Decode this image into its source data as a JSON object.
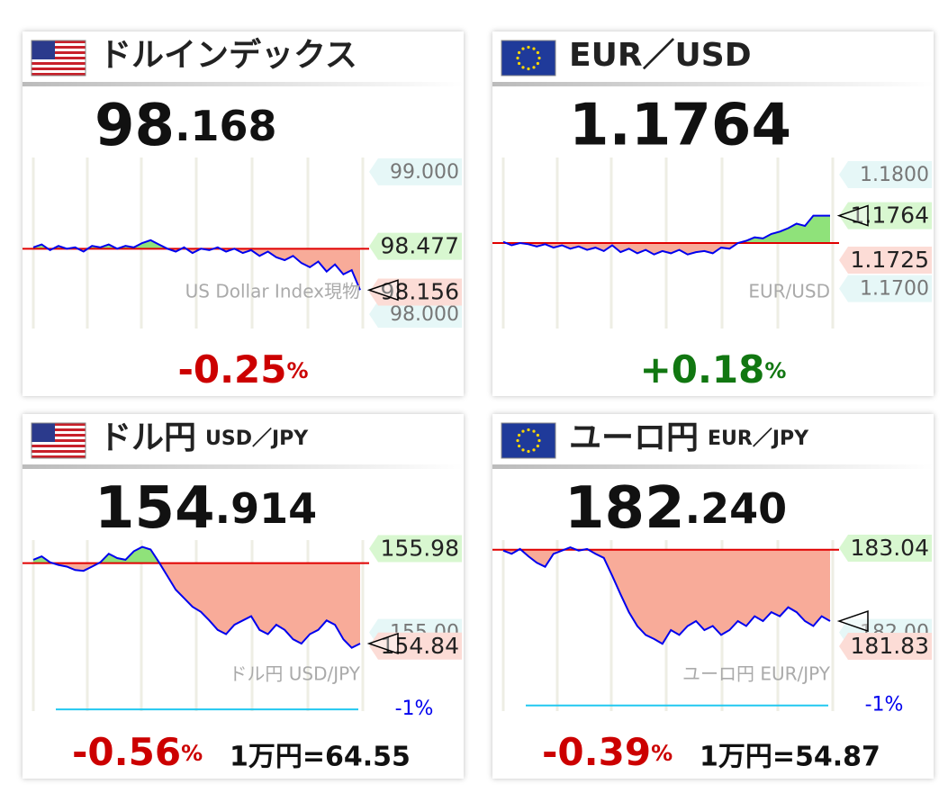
{
  "chart_data": [
    {
      "type": "line",
      "title": "ドルインデックス",
      "price": "98.168",
      "change": "-0.25%",
      "change_color": "#cc0000",
      "watermark": "US Dollar Index現物",
      "color": "#0000ee",
      "values": [
        98.47,
        98.49,
        98.45,
        98.48,
        98.46,
        98.47,
        98.44,
        98.48,
        98.47,
        98.49,
        98.46,
        98.48,
        98.47,
        98.5,
        98.52,
        98.49,
        98.46,
        98.44,
        98.47,
        98.43,
        98.46,
        98.45,
        98.47,
        98.44,
        98.46,
        98.43,
        98.45,
        98.41,
        98.44,
        98.4,
        98.38,
        98.41,
        98.36,
        98.33,
        98.37,
        98.3,
        98.35,
        98.28,
        98.31,
        98.17
      ],
      "ref_line": 98.46,
      "ylim": [
        97.9,
        99.1
      ],
      "yticks": [
        {
          "value": 99,
          "label": "99.000"
        },
        {
          "value": 98,
          "label": "98.000"
        }
      ],
      "price_labels": [
        {
          "value": 98.477,
          "label": "98.477",
          "color": "#d8f7d0"
        },
        {
          "value": 98.156,
          "label": "98.156",
          "color": "#fcdcd6"
        }
      ]
    },
    {
      "type": "line",
      "title": "EUR／USD",
      "price": "1.1764",
      "change": "+0.18%",
      "change_color": "#117711",
      "watermark": "EUR/USD",
      "color": "#0000ee",
      "values": [
        1.1741,
        1.1738,
        1.174,
        1.1739,
        1.1737,
        1.1739,
        1.1736,
        1.1738,
        1.1735,
        1.1737,
        1.1734,
        1.1736,
        1.1733,
        1.1738,
        1.1732,
        1.1735,
        1.1731,
        1.1734,
        1.173,
        1.1733,
        1.1731,
        1.1734,
        1.173,
        1.1732,
        1.1733,
        1.1731,
        1.1736,
        1.1735,
        1.174,
        1.1742,
        1.1745,
        1.1744,
        1.1748,
        1.175,
        1.1753,
        1.1757,
        1.1755,
        1.1764,
        1.1764,
        1.1764
      ],
      "ref_line": 1.174,
      "ylim": [
        1.1665,
        1.1815
      ],
      "yticks": [
        {
          "value": 1.18,
          "label": "1.1800"
        },
        {
          "value": 1.17,
          "label": "1.1700"
        }
      ],
      "price_labels": [
        {
          "value": 1.1764,
          "label": "1.1764",
          "color": "#d8f7d0"
        },
        {
          "value": 1.1725,
          "label": "1.1725",
          "color": "#fcdcd6"
        }
      ]
    },
    {
      "type": "line",
      "title": "ドル円",
      "subtitle": "USD／JPY",
      "price": "154.914",
      "change": "-0.56%",
      "change_color": "#cc0000",
      "note": "1万円=64.55",
      "watermark": "ドル円 USD/JPY",
      "color": "#0000ee",
      "values": [
        155.85,
        155.89,
        155.82,
        155.79,
        155.77,
        155.73,
        155.72,
        155.77,
        155.82,
        155.92,
        155.87,
        155.85,
        155.95,
        156.0,
        155.97,
        155.82,
        155.66,
        155.5,
        155.4,
        155.3,
        155.24,
        155.14,
        155.03,
        154.98,
        155.09,
        155.14,
        155.19,
        155.03,
        154.98,
        155.09,
        155.03,
        154.92,
        154.87,
        154.98,
        155.03,
        155.14,
        155.09,
        154.92,
        154.82,
        154.87
      ],
      "ref_line": 155.81,
      "ylim": [
        154.08,
        156.08
      ],
      "yticks": [
        {
          "value": 155,
          "label": "155.00"
        }
      ],
      "price_labels": [
        {
          "value": 155.98,
          "label": "155.98",
          "color": "#d8f7d0"
        },
        {
          "value": 154.84,
          "label": "154.84",
          "color": "#fcdcd6"
        }
      ],
      "minus_line": {
        "value": 154.1,
        "label": "-1%"
      }
    },
    {
      "type": "line",
      "title": "ユーロ円",
      "subtitle": "EUR／JPY",
      "price": "182.240",
      "change": "-0.39%",
      "change_color": "#cc0000",
      "note": "1万円=54.87",
      "watermark": "ユーロ円 EUR/JPY",
      "color": "#0000ee",
      "values": [
        183.01,
        182.97,
        183.03,
        182.94,
        182.86,
        182.81,
        182.97,
        183.01,
        183.05,
        183.01,
        183.03,
        182.97,
        182.92,
        182.7,
        182.47,
        182.25,
        182.08,
        181.97,
        181.92,
        181.86,
        182.03,
        181.97,
        182.08,
        182.14,
        182.03,
        182.08,
        181.97,
        182.03,
        182.14,
        182.08,
        182.2,
        182.14,
        182.25,
        182.2,
        182.31,
        182.25,
        182.14,
        182.08,
        182.2,
        182.14
      ],
      "ref_line": 183.02,
      "ylim": [
        181.03,
        183.14
      ],
      "yticks": [
        {
          "value": 182,
          "label": "182.00"
        }
      ],
      "price_labels": [
        {
          "value": 183.04,
          "label": "183.04",
          "color": "#d8f7d0"
        },
        {
          "value": 181.83,
          "label": "181.83",
          "color": "#fcdcd6"
        }
      ],
      "minus_line": {
        "value": 181.1,
        "label": "-1%"
      }
    }
  ]
}
